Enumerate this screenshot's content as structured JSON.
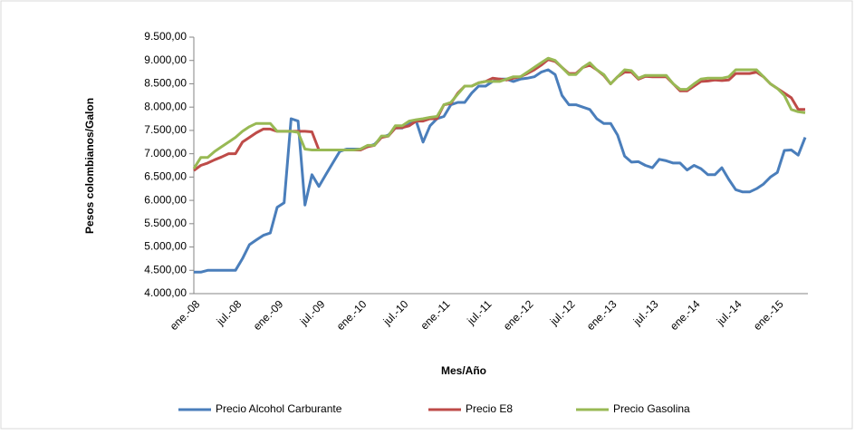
{
  "chart_data": {
    "type": "line",
    "y_label": "Pesos colombianos/Galon",
    "x_label": "Mes/Año",
    "categories": [
      "ene.-08",
      null,
      null,
      null,
      null,
      null,
      "jul.-08",
      null,
      null,
      null,
      null,
      null,
      "ene.-09",
      null,
      null,
      null,
      null,
      null,
      "jul.-09",
      null,
      null,
      null,
      null,
      null,
      "ene.-10",
      null,
      null,
      null,
      null,
      null,
      "jul.-10",
      null,
      null,
      null,
      null,
      null,
      "ene.-11",
      null,
      null,
      null,
      null,
      null,
      "jul.-11",
      null,
      null,
      null,
      null,
      null,
      "ene.-12",
      null,
      null,
      null,
      null,
      null,
      "jul.-12",
      null,
      null,
      null,
      null,
      null,
      "ene.-13",
      null,
      null,
      null,
      null,
      null,
      "jul.-13",
      null,
      null,
      null,
      null,
      null,
      "ene.-14",
      null,
      null,
      null,
      null,
      null,
      "jul.-14",
      null,
      null,
      null,
      null,
      null,
      "ene.-15",
      null,
      null,
      null,
      null
    ],
    "series": [
      {
        "name": "Precio Alcohol Carburante",
        "color": "#4a7ebb",
        "values": [
          4460,
          4460,
          4500,
          4500,
          4500,
          4500,
          4500,
          4750,
          5050,
          5150,
          5250,
          5300,
          5850,
          5950,
          7750,
          7700,
          5900,
          6550,
          6300,
          6550,
          6800,
          7050,
          7100,
          7100,
          7100,
          7150,
          7200,
          7350,
          7400,
          7550,
          7550,
          7650,
          7700,
          7250,
          7600,
          7750,
          7800,
          8050,
          8100,
          8100,
          8300,
          8450,
          8450,
          8550,
          8600,
          8600,
          8550,
          8600,
          8620,
          8650,
          8750,
          8800,
          8700,
          8250,
          8050,
          8050,
          8000,
          7950,
          7750,
          7650,
          7650,
          7400,
          6950,
          6820,
          6830,
          6750,
          6700,
          6880,
          6850,
          6800,
          6800,
          6650,
          6750,
          6680,
          6550,
          6550,
          6700,
          6450,
          6230,
          6180,
          6180,
          6250,
          6350,
          6500,
          6600,
          7070,
          7080,
          6970,
          7350
        ]
      },
      {
        "name": "Precio E8",
        "color": "#be4b48",
        "values": [
          6640,
          6750,
          6800,
          6870,
          6930,
          7000,
          7000,
          7250,
          7350,
          7450,
          7530,
          7530,
          7480,
          7480,
          7480,
          7480,
          7480,
          7470,
          7080,
          7080,
          7080,
          7080,
          7080,
          7080,
          7080,
          7150,
          7180,
          7350,
          7380,
          7550,
          7560,
          7600,
          7700,
          7700,
          7750,
          7750,
          8050,
          8080,
          8300,
          8450,
          8450,
          8520,
          8550,
          8620,
          8600,
          8580,
          8620,
          8650,
          8720,
          8800,
          8900,
          9020,
          8980,
          8850,
          8720,
          8720,
          8850,
          8900,
          8800,
          8680,
          8500,
          8650,
          8750,
          8750,
          8600,
          8660,
          8650,
          8650,
          8650,
          8500,
          8350,
          8350,
          8450,
          8550,
          8560,
          8580,
          8570,
          8580,
          8720,
          8720,
          8720,
          8750,
          8650,
          8500,
          8400,
          8300,
          8200,
          7950,
          7950
        ]
      },
      {
        "name": "Precio Gasolina",
        "color": "#98b954",
        "values": [
          6680,
          6920,
          6920,
          7050,
          7150,
          7250,
          7350,
          7480,
          7580,
          7650,
          7650,
          7650,
          7480,
          7480,
          7480,
          7460,
          7100,
          7080,
          7080,
          7080,
          7080,
          7080,
          7080,
          7080,
          7100,
          7180,
          7180,
          7380,
          7380,
          7600,
          7600,
          7700,
          7730,
          7750,
          7780,
          7800,
          8050,
          8100,
          8280,
          8450,
          8450,
          8520,
          8550,
          8550,
          8550,
          8600,
          8650,
          8650,
          8750,
          8850,
          8950,
          9050,
          9000,
          8850,
          8700,
          8700,
          8850,
          8950,
          8800,
          8700,
          8500,
          8650,
          8800,
          8780,
          8620,
          8680,
          8680,
          8680,
          8680,
          8500,
          8380,
          8380,
          8500,
          8600,
          8620,
          8620,
          8620,
          8650,
          8800,
          8800,
          8800,
          8800,
          8650,
          8500,
          8400,
          8250,
          7950,
          7900,
          7880
        ]
      }
    ],
    "ylim": [
      4000,
      9500
    ],
    "yticks": [
      {
        "value": 4000,
        "label": "4.000,00"
      },
      {
        "value": 4500,
        "label": "4.500,00"
      },
      {
        "value": 5000,
        "label": "5.000,00"
      },
      {
        "value": 5500,
        "label": "5.500,00"
      },
      {
        "value": 6000,
        "label": "6.000,00"
      },
      {
        "value": 6500,
        "label": "6.500,00"
      },
      {
        "value": 7000,
        "label": "7.000,00"
      },
      {
        "value": 7500,
        "label": "7.500,00"
      },
      {
        "value": 8000,
        "label": "8.000,00"
      },
      {
        "value": 8500,
        "label": "8.500,00"
      },
      {
        "value": 9000,
        "label": "9.000,00"
      },
      {
        "value": 9500,
        "label": "9.500,00"
      }
    ],
    "grid": false,
    "legend": "bottom"
  }
}
